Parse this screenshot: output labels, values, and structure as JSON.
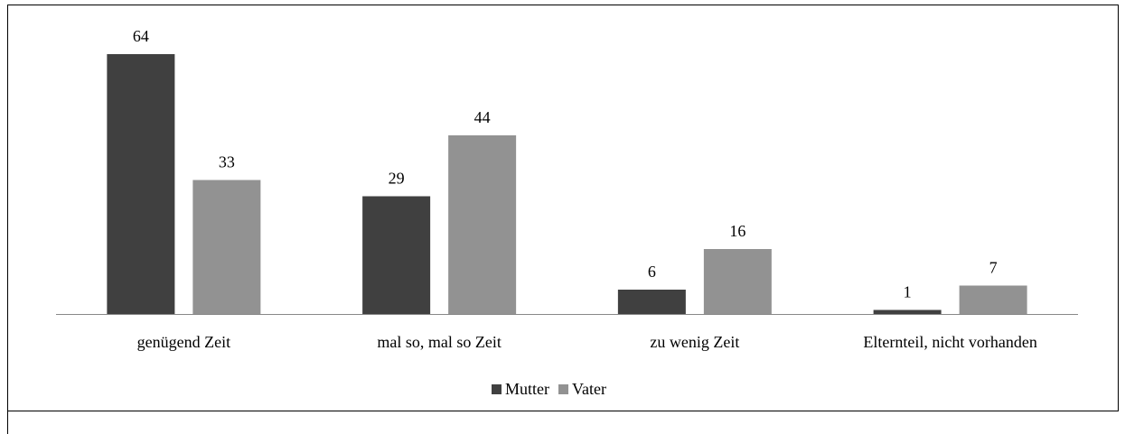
{
  "chart_data": {
    "type": "bar",
    "categories": [
      "genügend Zeit",
      "mal so, mal so Zeit",
      "zu wenig Zeit",
      "Elternteil, nicht vorhanden"
    ],
    "series": [
      {
        "name": "Mutter",
        "color": "#404040",
        "values": [
          64,
          29,
          6,
          1
        ]
      },
      {
        "name": "Vater",
        "color": "#929292",
        "values": [
          33,
          44,
          16,
          7
        ]
      }
    ]
  }
}
